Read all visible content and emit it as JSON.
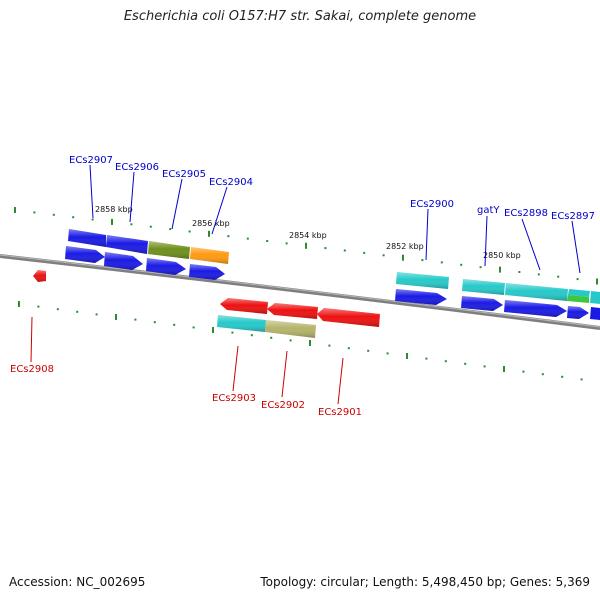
{
  "title": "Escherichia coli O157:H7 str. Sakai, complete genome",
  "footer": {
    "accession": "Accession: NC_002695",
    "stats": "Topology: circular; Length: 5,498,450 bp; Genes: 5,369"
  },
  "colors": {
    "backbone": "#7f7f7f",
    "tick": "#2e8b2e",
    "forward_label": "#0000cc",
    "reverse_label": "#cc0000",
    "blue": "#1a1ae6",
    "cyan": "#26c9c9",
    "red": "#ee1111",
    "olive": "#6f8f1a",
    "orange": "#ff9a10",
    "khaki": "#b4b46a",
    "green": "#3cc83c"
  },
  "scale_labels": [
    "2858 kbp",
    "2856 kbp",
    "2854 kbp",
    "2852 kbp",
    "2850 kbp"
  ],
  "forward_genes": [
    "ECs2907",
    "ECs2906",
    "ECs2905",
    "ECs2904",
    "ECs2900",
    "gatY",
    "ECs2898",
    "ECs2897"
  ],
  "reverse_genes": [
    "ECs2908",
    "ECs2903",
    "ECs2902",
    "ECs2901"
  ]
}
